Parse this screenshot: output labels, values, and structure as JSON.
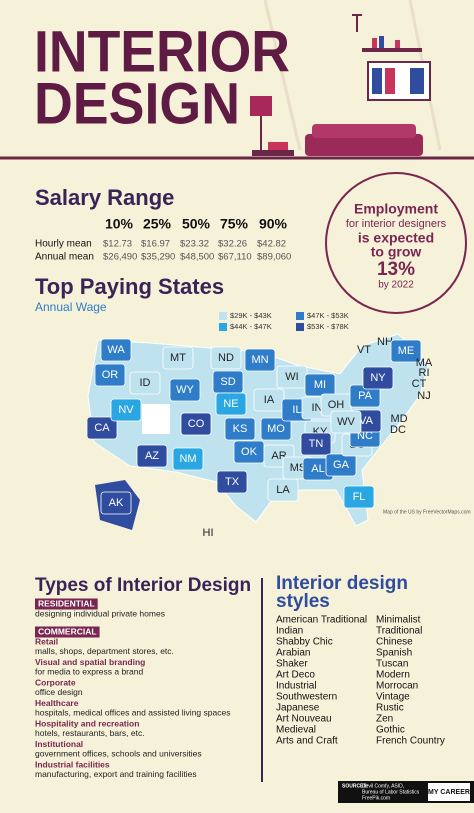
{
  "header": {
    "title_line1": "INTERIOR",
    "title_line2": "DESIGN"
  },
  "salary": {
    "title": "Salary Range",
    "columns": [
      "10%",
      "25%",
      "50%",
      "75%",
      "90%"
    ],
    "rows": [
      {
        "label": "Hourly mean",
        "values": [
          "$12.73",
          "$16.97",
          "$23.32",
          "$32.26",
          "$42.82"
        ]
      },
      {
        "label": "Annual mean",
        "values": [
          "$26,490",
          "$35,290",
          "$48,500",
          "$67,110",
          "$89,060"
        ]
      }
    ]
  },
  "employment": {
    "line1": "Employment",
    "line2": "for interior designers",
    "line3": "is expected",
    "line4": "to grow",
    "percent": "13%",
    "line5": "by 2022"
  },
  "map": {
    "title": "Top Paying States",
    "subtitle": "Annual Wage",
    "legend": [
      {
        "label": "$29K - $43K",
        "color": "#bfe2ef"
      },
      {
        "label": "$44K - $47K",
        "color": "#2aa6e3"
      },
      {
        "label": "$47K - $53K",
        "color": "#2f7dc8"
      },
      {
        "label": "$53K - $78K",
        "color": "#2f4c9f"
      }
    ],
    "credit": "Map of the US by FreeVectorMaps.com",
    "states": [
      {
        "label": "WA",
        "range": "$47K - $53K"
      },
      {
        "label": "OR",
        "range": "$47K - $53K"
      },
      {
        "label": "CA",
        "range": "$53K - $78K"
      },
      {
        "label": "NV",
        "range": "$44K - $47K"
      },
      {
        "label": "ID",
        "range": "$29K - $43K"
      },
      {
        "label": "MT",
        "range": "$29K - $43K"
      },
      {
        "label": "WY",
        "range": "$47K - $53K"
      },
      {
        "label": "CO",
        "range": "$53K - $78K"
      },
      {
        "label": "AZ",
        "range": "$53K - $78K"
      },
      {
        "label": "NM",
        "range": "$44K - $47K"
      },
      {
        "label": "ND",
        "range": "$29K - $43K"
      },
      {
        "label": "SD",
        "range": "$47K - $53K"
      },
      {
        "label": "NE",
        "range": "$44K - $47K"
      },
      {
        "label": "KS",
        "range": "$47K - $53K"
      },
      {
        "label": "OK",
        "range": "$47K - $53K"
      },
      {
        "label": "TX",
        "range": "$53K - $78K"
      },
      {
        "label": "MN",
        "range": "$47K - $53K"
      },
      {
        "label": "IA",
        "range": "$29K - $43K"
      },
      {
        "label": "MO",
        "range": "$47K - $53K"
      },
      {
        "label": "AR",
        "range": "$29K - $43K"
      },
      {
        "label": "LA",
        "range": "$29K - $43K"
      },
      {
        "label": "WI",
        "range": "$29K - $43K"
      },
      {
        "label": "IL",
        "range": "$47K - $53K"
      },
      {
        "label": "MI",
        "range": "$47K - $53K"
      },
      {
        "label": "IN",
        "range": "$29K - $43K"
      },
      {
        "label": "OH",
        "range": "$29K - $43K"
      },
      {
        "label": "KY",
        "range": "$29K - $43K"
      },
      {
        "label": "TN",
        "range": "$53K - $78K"
      },
      {
        "label": "MS",
        "range": "$29K - $43K"
      },
      {
        "label": "AL",
        "range": "$47K - $53K"
      },
      {
        "label": "GA",
        "range": "$47K - $53K"
      },
      {
        "label": "FL",
        "range": "$44K - $47K"
      },
      {
        "label": "SC",
        "range": "$29K - $43K"
      },
      {
        "label": "NC",
        "range": "$47K - $53K"
      },
      {
        "label": "VA",
        "range": "$53K - $78K"
      },
      {
        "label": "WV",
        "range": "$29K - $43K"
      },
      {
        "label": "PA",
        "range": "$47K - $53K"
      },
      {
        "label": "NY",
        "range": "$53K - $78K"
      },
      {
        "label": "VT",
        "range": "$29K - $43K"
      },
      {
        "label": "NH",
        "range": "$29K - $43K"
      },
      {
        "label": "ME",
        "range": "$47K - $53K"
      },
      {
        "label": "MA",
        "range": "$53K - $78K"
      },
      {
        "label": "RI",
        "range": "$53K - $78K"
      },
      {
        "label": "CT",
        "range": "$53K - $78K"
      },
      {
        "label": "NJ",
        "range": "$53K - $78K"
      },
      {
        "label": "MD",
        "range": "$53K - $78K"
      },
      {
        "label": "DC",
        "range": "$53K - $78K"
      },
      {
        "label": "AK",
        "range": "$53K - $78K"
      },
      {
        "label": "HI",
        "range": "$29K - $43K"
      }
    ]
  },
  "types": {
    "title": "Types of Interior Design",
    "groups": [
      {
        "heading": "RESIDENTIAL",
        "items": [
          {
            "title": null,
            "description": "designing individual private homes"
          }
        ]
      },
      {
        "heading": "COMMERCIAL",
        "items": [
          {
            "title": "Retail",
            "description": "malls, shops, department stores, etc."
          },
          {
            "title": "Visual and spatial branding",
            "description": "for media to express a brand"
          },
          {
            "title": "Corporate",
            "description": "office design"
          },
          {
            "title": "Healthcare",
            "description": "hospitals, medical offices and assisted living spaces"
          },
          {
            "title": "Hospitality and recreation",
            "description": "hotels, restaurants, bars, etc."
          },
          {
            "title": "Institutional",
            "description": "government offices, schools and universities"
          },
          {
            "title": "Industrial facilities",
            "description": "manufacturing, export and training facilities"
          }
        ]
      }
    ]
  },
  "styles": {
    "title_line1": "Interior design",
    "title_line2": "styles",
    "column1": [
      "American Traditional",
      "Indian",
      "Shabby Chic",
      "Arabian",
      "Shaker",
      "Art Deco",
      "Industrial",
      "Southwestern",
      "Japanese",
      "Art Nouveau",
      "Medieval",
      "Arts and Craft"
    ],
    "column2": [
      "Minimalist",
      "Traditional",
      "Chinese",
      "Spanish",
      "Tuscan",
      "Modern",
      "Morrocan",
      "Vintage",
      "Rustic",
      "Zen",
      "Gothic",
      "French Country"
    ]
  },
  "footer": {
    "sources_label": "SOURCES:",
    "sources_line1": "Devil Comfy, ASID,",
    "sources_line2": "Bureau of Labor Statistics",
    "sources_line3": "FreePik.com",
    "logo": "MY CAREER"
  }
}
